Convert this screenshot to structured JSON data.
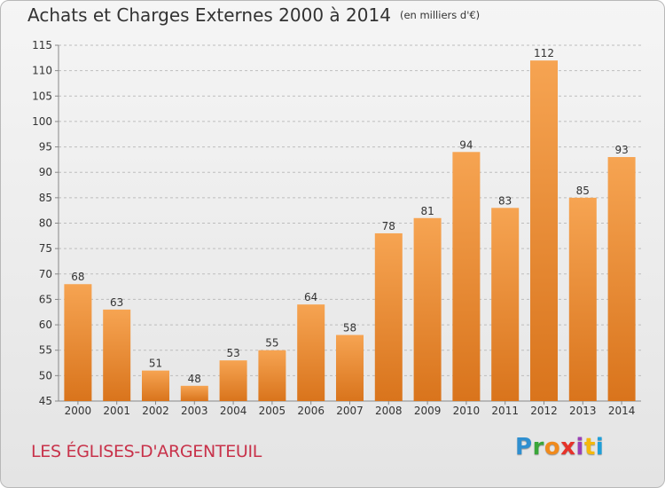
{
  "title": "Achats et Charges Externes 2000 à 2014",
  "unit_note": "(en milliers d'€)",
  "commune": "LES ÉGLISES-D'ARGENTEUIL",
  "logo": {
    "text": "Proxiti"
  },
  "colors": {
    "bar_top": "#f6a452",
    "bar_bottom": "#d9741c",
    "commune": "#c8324a"
  },
  "chart_data": {
    "type": "bar",
    "categories": [
      "2000",
      "2001",
      "2002",
      "2003",
      "2004",
      "2005",
      "2006",
      "2007",
      "2008",
      "2009",
      "2010",
      "2011",
      "2012",
      "2013",
      "2014"
    ],
    "values": [
      68,
      63,
      51,
      48,
      53,
      55,
      64,
      58,
      78,
      81,
      94,
      83,
      112,
      85,
      93
    ],
    "ylim": [
      45,
      115
    ],
    "yticks": [
      45,
      50,
      55,
      60,
      65,
      70,
      75,
      80,
      85,
      90,
      95,
      100,
      105,
      110,
      115
    ],
    "grid": "horizontal-dashed",
    "legend": "none"
  }
}
